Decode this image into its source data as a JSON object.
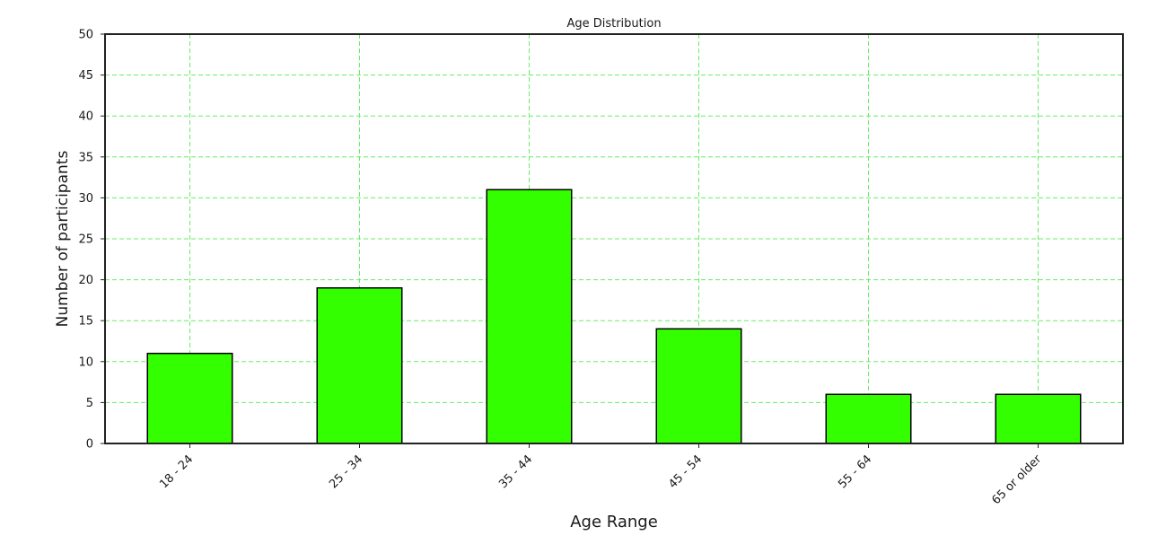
{
  "chart_data": {
    "type": "bar",
    "title": "Age Distribution",
    "xlabel": "Age Range",
    "ylabel": "Number of participants",
    "categories": [
      "18 - 24",
      "25 - 34",
      "35 - 44",
      "45 - 54",
      "55 - 64",
      "65 or older"
    ],
    "values": [
      11,
      19,
      31,
      14,
      6,
      6
    ],
    "ylim": [
      0,
      50
    ],
    "yticks": [
      0,
      5,
      10,
      15,
      20,
      25,
      30,
      35,
      40,
      45,
      50
    ],
    "grid": true,
    "colors": {
      "bar_fill": "#33ff00",
      "bar_edge": "#000000",
      "grid": "#66ee66",
      "axis": "#222222"
    }
  }
}
